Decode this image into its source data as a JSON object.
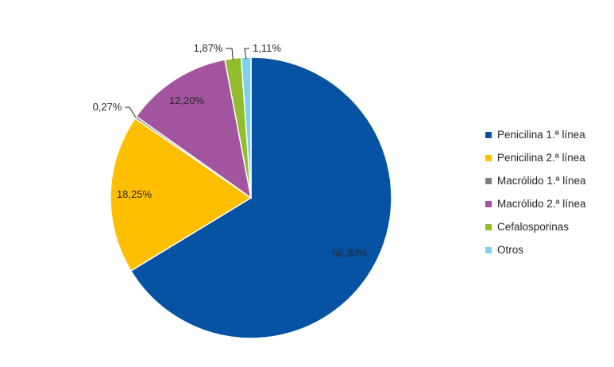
{
  "chart_data": {
    "type": "pie",
    "start_angle_deg": 0,
    "direction": "clockwise",
    "slices": [
      {
        "name": "Penicilina 1.ª línea",
        "value": 66.3,
        "label": "66,30%",
        "color": "#0653A3"
      },
      {
        "name": "Penicilina 2.ª línea",
        "value": 18.25,
        "label": "18,25%",
        "color": "#FFBF00"
      },
      {
        "name": "Macrólido 1.ª línea",
        "value": 0.27,
        "label": "0,27%",
        "color": "#808080"
      },
      {
        "name": "Macrólido 2.ª línea",
        "value": 12.2,
        "label": "12,20%",
        "color": "#A3549E"
      },
      {
        "name": "Cefalosporinas",
        "value": 1.87,
        "label": "1,87%",
        "color": "#92BD2E"
      },
      {
        "name": "Otros",
        "value": 1.11,
        "label": "1,11%",
        "color": "#7FD1F0"
      }
    ],
    "legend_position": "right"
  }
}
